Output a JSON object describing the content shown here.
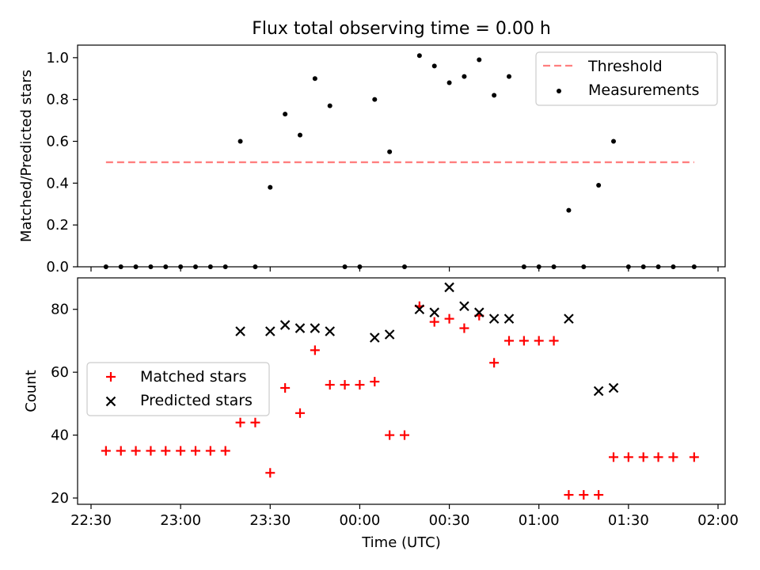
{
  "chart_data": [
    {
      "type": "scatter",
      "title": "Flux total observing time = 0.00 h",
      "xlabel": "",
      "ylabel": "Matched/Predicted stars",
      "ylim": [
        0,
        1.06
      ],
      "yticks": [
        "0.0",
        "0.2",
        "0.4",
        "0.6",
        "0.8",
        "1.0"
      ],
      "grid": false,
      "legend_position": "top-right",
      "threshold": {
        "name": "Threshold",
        "value": 0.5,
        "x_from": "22:35",
        "x_to": "01:52",
        "color": "#ff7f7f"
      },
      "series": [
        {
          "name": "Measurements",
          "color": "#000000",
          "points": [
            [
              "22:35",
              0
            ],
            [
              "22:40",
              0
            ],
            [
              "22:45",
              0
            ],
            [
              "22:50",
              0
            ],
            [
              "22:55",
              0
            ],
            [
              "23:00",
              0
            ],
            [
              "23:05",
              0
            ],
            [
              "23:10",
              0
            ],
            [
              "23:15",
              0
            ],
            [
              "23:20",
              0.6
            ],
            [
              "23:25",
              0
            ],
            [
              "23:30",
              0.38
            ],
            [
              "23:35",
              0.73
            ],
            [
              "23:40",
              0.63
            ],
            [
              "23:45",
              0.9
            ],
            [
              "23:50",
              0.77
            ],
            [
              "23:55",
              0
            ],
            [
              "00:00",
              0
            ],
            [
              "00:05",
              0.8
            ],
            [
              "00:10",
              0.55
            ],
            [
              "00:15",
              0
            ],
            [
              "00:20",
              1.01
            ],
            [
              "00:25",
              0.96
            ],
            [
              "00:30",
              0.88
            ],
            [
              "00:35",
              0.91
            ],
            [
              "00:40",
              0.99
            ],
            [
              "00:45",
              0.82
            ],
            [
              "00:50",
              0.91
            ],
            [
              "00:55",
              0
            ],
            [
              "01:00",
              0
            ],
            [
              "01:05",
              0
            ],
            [
              "01:10",
              0.27
            ],
            [
              "01:15",
              0
            ],
            [
              "01:20",
              0.39
            ],
            [
              "01:25",
              0.6
            ],
            [
              "01:30",
              0
            ],
            [
              "01:35",
              0
            ],
            [
              "01:40",
              0
            ],
            [
              "01:45",
              0
            ],
            [
              "01:52",
              0
            ]
          ]
        }
      ]
    },
    {
      "type": "scatter",
      "title": "",
      "xlabel": "Time (UTC)",
      "ylabel": "Count",
      "ylim": [
        18,
        90
      ],
      "yticks": [
        "20",
        "40",
        "60",
        "80"
      ],
      "xticks": [
        "22:30",
        "23:00",
        "23:30",
        "00:00",
        "00:30",
        "01:00",
        "01:30",
        "02:00"
      ],
      "grid": false,
      "legend_position": "center-left",
      "series": [
        {
          "name": "Matched stars",
          "color": "#ff0000",
          "marker": "plus",
          "points": [
            [
              "22:35",
              35
            ],
            [
              "22:40",
              35
            ],
            [
              "22:45",
              35
            ],
            [
              "22:50",
              35
            ],
            [
              "22:55",
              35
            ],
            [
              "23:00",
              35
            ],
            [
              "23:05",
              35
            ],
            [
              "23:10",
              35
            ],
            [
              "23:15",
              35
            ],
            [
              "23:20",
              44
            ],
            [
              "23:25",
              44
            ],
            [
              "23:30",
              28
            ],
            [
              "23:35",
              55
            ],
            [
              "23:40",
              47
            ],
            [
              "23:45",
              67
            ],
            [
              "23:50",
              56
            ],
            [
              "23:55",
              56
            ],
            [
              "00:00",
              56
            ],
            [
              "00:05",
              57
            ],
            [
              "00:10",
              40
            ],
            [
              "00:15",
              40
            ],
            [
              "00:20",
              81
            ],
            [
              "00:25",
              76
            ],
            [
              "00:30",
              77
            ],
            [
              "00:35",
              74
            ],
            [
              "00:40",
              78
            ],
            [
              "00:45",
              63
            ],
            [
              "00:50",
              70
            ],
            [
              "00:55",
              70
            ],
            [
              "01:00",
              70
            ],
            [
              "01:05",
              70
            ],
            [
              "01:10",
              21
            ],
            [
              "01:15",
              21
            ],
            [
              "01:20",
              21
            ],
            [
              "01:25",
              33
            ],
            [
              "01:30",
              33
            ],
            [
              "01:35",
              33
            ],
            [
              "01:40",
              33
            ],
            [
              "01:45",
              33
            ],
            [
              "01:52",
              33
            ]
          ]
        },
        {
          "name": "Predicted stars",
          "color": "#000000",
          "marker": "x",
          "points": [
            [
              "23:20",
              73
            ],
            [
              "23:30",
              73
            ],
            [
              "23:35",
              75
            ],
            [
              "23:40",
              74
            ],
            [
              "23:45",
              74
            ],
            [
              "23:50",
              73
            ],
            [
              "00:05",
              71
            ],
            [
              "00:10",
              72
            ],
            [
              "00:20",
              80
            ],
            [
              "00:25",
              79
            ],
            [
              "00:30",
              87
            ],
            [
              "00:35",
              81
            ],
            [
              "00:40",
              79
            ],
            [
              "00:45",
              77
            ],
            [
              "00:50",
              77
            ],
            [
              "01:10",
              77
            ],
            [
              "01:20",
              54
            ],
            [
              "01:25",
              55
            ]
          ]
        }
      ]
    }
  ]
}
